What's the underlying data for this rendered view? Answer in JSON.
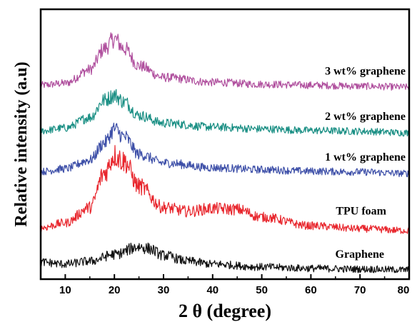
{
  "chart_data": {
    "type": "line",
    "xlabel": "2 θ (degree)",
    "ylabel": "Relative intensity (a.u)",
    "xlim": [
      5,
      80
    ],
    "xticks": [
      10,
      20,
      30,
      40,
      50,
      60,
      70,
      80
    ],
    "grid": false,
    "legend": "labels placed at right end of each curve",
    "series": [
      {
        "name": "3 wt% graphene",
        "color": "#b0509e",
        "x": [
          5,
          10,
          15,
          18,
          20,
          22,
          25,
          30,
          40,
          50,
          60,
          70,
          80
        ],
        "y": [
          0.1,
          0.2,
          0.9,
          2.0,
          2.5,
          2.0,
          1.1,
          0.5,
          0.25,
          0.15,
          0.1,
          0.05,
          0.0
        ]
      },
      {
        "name": "2 wt% graphene",
        "color": "#1a8f84",
        "x": [
          5,
          10,
          15,
          18,
          20,
          22,
          25,
          30,
          40,
          50,
          60,
          70,
          80
        ],
        "y": [
          0.1,
          0.25,
          0.8,
          1.7,
          1.95,
          1.6,
          0.9,
          0.5,
          0.3,
          0.2,
          0.12,
          0.08,
          0.0
        ]
      },
      {
        "name": "1 wt% graphene",
        "color": "#3d4fa8",
        "x": [
          5,
          10,
          15,
          18,
          20,
          22,
          25,
          30,
          40,
          50,
          60,
          70,
          80
        ],
        "y": [
          0.1,
          0.25,
          0.7,
          1.6,
          2.3,
          1.9,
          1.0,
          0.55,
          0.3,
          0.2,
          0.12,
          0.08,
          0.0
        ]
      },
      {
        "name": "TPU foam",
        "color": "#e8262d",
        "x": [
          5,
          10,
          15,
          18,
          20,
          22,
          25,
          30,
          35,
          40,
          45,
          50,
          60,
          70,
          80
        ],
        "y": [
          0.15,
          0.4,
          1.2,
          3.0,
          3.9,
          3.6,
          2.3,
          1.2,
          1.0,
          1.15,
          1.1,
          0.7,
          0.25,
          0.1,
          0.0
        ]
      },
      {
        "name": "Graphene",
        "color": "#111111",
        "x": [
          5,
          10,
          15,
          20,
          25,
          27,
          30,
          35,
          40,
          50,
          60,
          70,
          80
        ],
        "y": [
          0.4,
          0.3,
          0.45,
          0.8,
          1.2,
          1.1,
          0.75,
          0.45,
          0.3,
          0.15,
          0.08,
          0.04,
          0.0
        ]
      }
    ]
  }
}
